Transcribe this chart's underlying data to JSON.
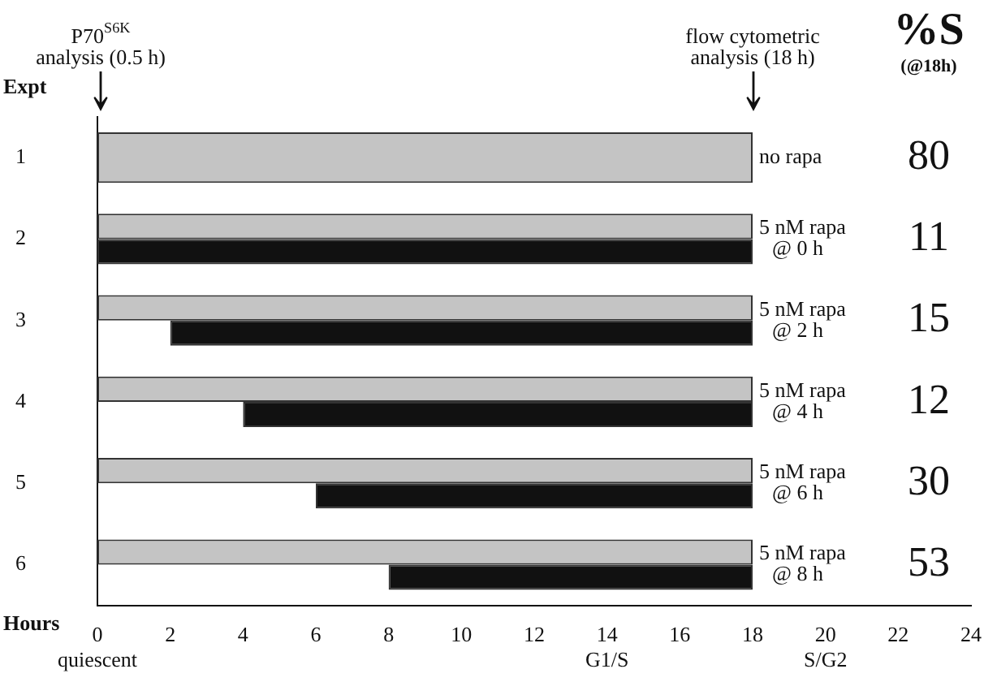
{
  "chart_data": {
    "type": "bar",
    "orientation": "horizontal",
    "title": "%S",
    "subtitle": "(@18h)",
    "xlabel": "Hours",
    "ylabel": "Expt",
    "categories": [
      "1",
      "2",
      "3",
      "4",
      "5",
      "6"
    ],
    "series": [
      {
        "color": "#c4c4c4",
        "values": [
          18,
          18,
          18,
          18,
          18,
          18
        ],
        "base": [
          0,
          0,
          0,
          0,
          0,
          0
        ]
      },
      {
        "color": "#111111",
        "values": [
          null,
          18,
          16,
          14,
          12,
          10
        ],
        "base": [
          null,
          0,
          2,
          4,
          6,
          8
        ]
      }
    ],
    "xlim": [
      0,
      24
    ],
    "xticks": [
      {
        "value": 0,
        "label": "0\nquiescent"
      },
      2,
      4,
      6,
      8,
      10,
      12,
      {
        "value": 14,
        "label": "14\nG1/S"
      },
      16,
      18,
      {
        "value": 20,
        "label": "20\nS/G2"
      },
      22,
      24
    ],
    "annotations": [
      "P70$^{S6K}$\nanalysis (0.5 h)",
      "flow cytometric\nanalysis (18 h)",
      "no rapa",
      "5 nM rapa\n@ 0 h",
      "5 nM rapa\n@ 2 h",
      "5 nM rapa\n@ 4 h",
      "5 nM rapa\n@ 6 h",
      "5 nM rapa\n@ 8 h",
      "80",
      "11",
      "15",
      "12",
      "30",
      "53"
    ],
    "grid": false,
    "legend": false
  }
}
